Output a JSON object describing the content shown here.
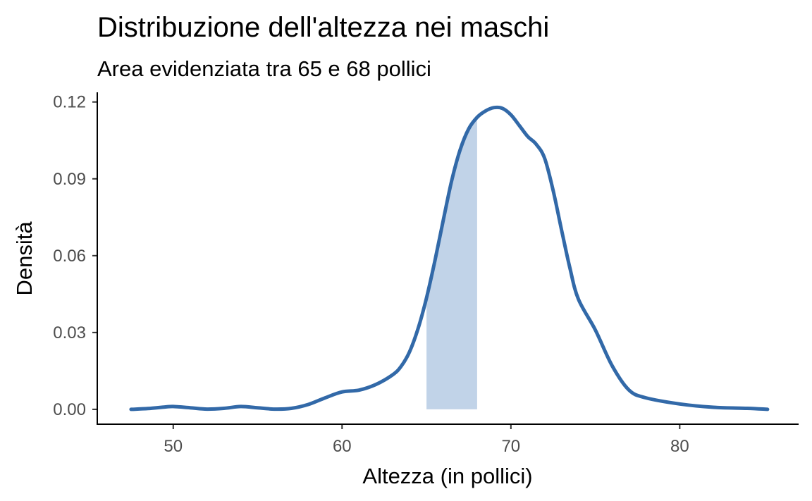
{
  "chart_data": {
    "type": "area",
    "title": "Distribuzione dell'altezza nei maschi",
    "subtitle": "Area evidenziata tra 65 e 68 pollici",
    "xlabel": "Altezza (in pollici)",
    "ylabel": "Densità",
    "xlim": [
      45.5,
      87.0
    ],
    "ylim": [
      -0.0058,
      0.1235
    ],
    "x_ticks": [
      50,
      60,
      70,
      80
    ],
    "x_tick_labels": [
      "50",
      "60",
      "70",
      "80"
    ],
    "y_ticks": [
      0.0,
      0.03,
      0.06,
      0.09,
      0.12
    ],
    "y_tick_labels": [
      "0.00",
      "0.03",
      "0.06",
      "0.09",
      "0.12"
    ],
    "grid": false,
    "series": [
      {
        "color": "#3269a8",
        "x": [
          47.5,
          48.5,
          49.5,
          50.0,
          51.0,
          52.0,
          53.0,
          54.0,
          55.0,
          56.0,
          57.0,
          58.0,
          59.0,
          60.0,
          61.0,
          62.0,
          63.0,
          63.5,
          64.0,
          64.5,
          65.0,
          65.5,
          66.0,
          66.5,
          67.0,
          67.5,
          68.0,
          68.5,
          69.0,
          69.5,
          70.0,
          70.5,
          71.0,
          71.5,
          72.0,
          72.5,
          73.0,
          73.5,
          74.0,
          75.0,
          76.0,
          77.0,
          78.0,
          80.0,
          82.0,
          84.0,
          85.2
        ],
        "y": [
          0.0,
          0.0003,
          0.0009,
          0.0011,
          0.0006,
          0.0001,
          0.0004,
          0.0011,
          0.0006,
          0.0001,
          0.0004,
          0.0019,
          0.0045,
          0.0068,
          0.0075,
          0.0097,
          0.0135,
          0.0168,
          0.0225,
          0.0315,
          0.0435,
          0.058,
          0.074,
          0.0895,
          0.1015,
          0.1095,
          0.114,
          0.1165,
          0.1178,
          0.1175,
          0.115,
          0.1108,
          0.1065,
          0.1035,
          0.098,
          0.0855,
          0.07,
          0.055,
          0.043,
          0.031,
          0.017,
          0.0075,
          0.0045,
          0.0021,
          0.0008,
          0.0004,
          0.0
        ]
      }
    ],
    "highlight": {
      "from": 65,
      "to": 68,
      "color": "#c1d3e8"
    }
  }
}
